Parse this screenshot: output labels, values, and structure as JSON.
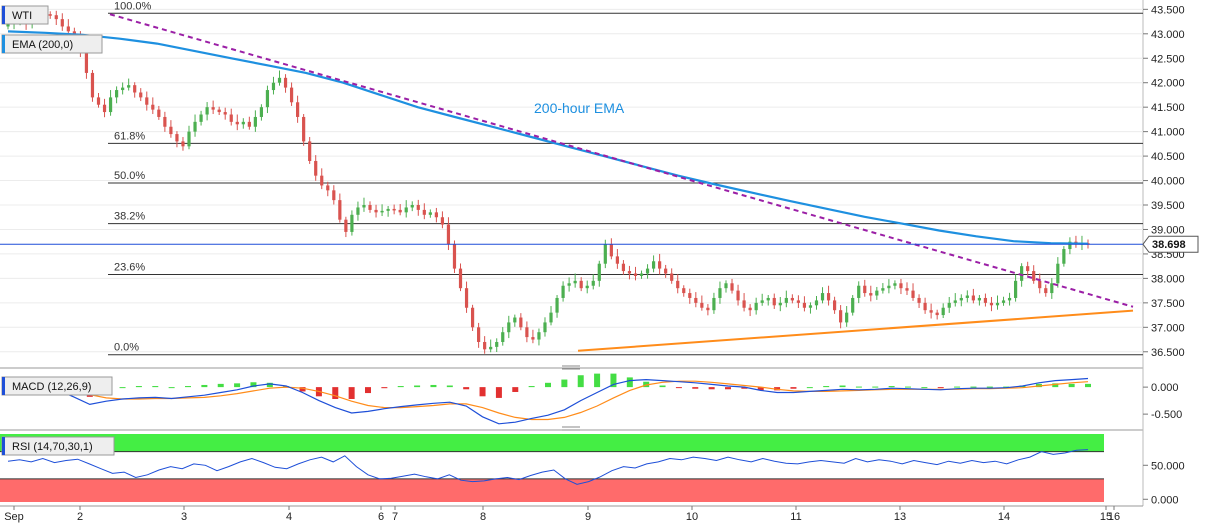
{
  "symbol": "WTI",
  "ema_label": "EMA (200,0)",
  "macd_label": "MACD (12,26,9)",
  "rsi_label": "RSI (14,70,30,1)",
  "price_tag": "38.698",
  "ema_annotation": "200-hour EMA",
  "colors": {
    "bull": "#4caf50",
    "bear": "#d9534f",
    "ema": "#1e90e0",
    "resistance": "#9b1fa6",
    "support": "#ff8c1a",
    "rsi_overbought": "#44ee44",
    "rsi_oversold": "#ff6b6b",
    "macd_line": "#1e4fd8",
    "signal_line": "#ff8c1a"
  },
  "fib_levels": [
    {
      "label": "100.0%",
      "price": 43.42
    },
    {
      "label": "61.8%",
      "price": 40.76
    },
    {
      "label": "50.0%",
      "price": 39.95
    },
    {
      "label": "38.2%",
      "price": 39.12
    },
    {
      "label": "23.6%",
      "price": 38.08
    },
    {
      "label": "0.0%",
      "price": 36.44
    }
  ],
  "x_labels": [
    "Sep",
    "2",
    "3",
    "4",
    "6",
    "7",
    "8",
    "9",
    "10",
    "11",
    "13",
    "14",
    "15",
    "16"
  ],
  "chart_data": [
    {
      "type": "candlestick",
      "title": "WTI",
      "x_axis_ticks": [
        "Sep",
        "2",
        "3",
        "4",
        "6",
        "7",
        "8",
        "9",
        "10",
        "11",
        "13",
        "14",
        "15",
        "16"
      ],
      "y_axis_ticks": [
        "36.500",
        "37.000",
        "37.500",
        "38.000",
        "38.500",
        "39.000",
        "39.500",
        "40.000",
        "40.500",
        "41.000",
        "41.500",
        "42.000",
        "42.500",
        "43.000",
        "43.500"
      ],
      "ylim": [
        36.25,
        43.65
      ],
      "last_price": 38.698,
      "close_series": [
        43.2,
        43.25,
        43.3,
        43.2,
        43.28,
        43.35,
        43.4,
        43.38,
        43.3,
        43.15,
        43.05,
        42.95,
        42.6,
        42.2,
        41.7,
        41.55,
        41.4,
        41.7,
        41.85,
        41.9,
        41.95,
        41.8,
        41.7,
        41.55,
        41.45,
        41.3,
        41.1,
        40.95,
        40.8,
        40.7,
        41.0,
        41.2,
        41.35,
        41.5,
        41.45,
        41.4,
        41.35,
        41.2,
        41.15,
        41.2,
        41.1,
        41.3,
        41.5,
        41.85,
        42.0,
        42.1,
        41.9,
        41.6,
        41.3,
        40.8,
        40.4,
        40.1,
        39.9,
        39.8,
        39.6,
        39.2,
        38.95,
        39.3,
        39.45,
        39.5,
        39.4,
        39.35,
        39.38,
        39.42,
        39.4,
        39.35,
        39.45,
        39.5,
        39.4,
        39.3,
        39.35,
        39.25,
        39.1,
        38.7,
        38.2,
        37.8,
        37.4,
        37.0,
        36.7,
        36.55,
        36.6,
        36.7,
        36.9,
        37.1,
        37.2,
        37.0,
        36.8,
        36.75,
        36.9,
        37.1,
        37.3,
        37.6,
        37.85,
        37.9,
        37.95,
        37.8,
        37.85,
        37.95,
        38.3,
        38.7,
        38.45,
        38.3,
        38.15,
        38.1,
        38.05,
        38.1,
        38.2,
        38.35,
        38.2,
        38.1,
        37.95,
        37.8,
        37.7,
        37.6,
        37.5,
        37.4,
        37.35,
        37.6,
        37.8,
        37.9,
        37.75,
        37.55,
        37.4,
        37.35,
        37.5,
        37.55,
        37.6,
        37.45,
        37.5,
        37.6,
        37.55,
        37.5,
        37.4,
        37.45,
        37.55,
        37.7,
        37.55,
        37.35,
        37.1,
        37.3,
        37.6,
        37.85,
        37.7,
        37.65,
        37.75,
        37.8,
        37.85,
        37.9,
        37.8,
        37.75,
        37.6,
        37.5,
        37.35,
        37.3,
        37.25,
        37.4,
        37.5,
        37.55,
        37.6,
        37.65,
        37.55,
        37.6,
        37.5,
        37.45,
        37.5,
        37.55,
        37.6,
        37.95,
        38.25,
        38.15,
        37.95,
        37.8,
        37.7,
        37.9,
        38.3,
        38.6,
        38.75,
        38.7,
        38.72,
        38.7
      ],
      "ema_200_series": [
        43.05,
        43.02,
        42.98,
        42.9,
        42.8,
        42.65,
        42.5,
        42.35,
        42.2,
        42.0,
        41.75,
        41.5,
        41.3,
        41.1,
        40.9,
        40.7,
        40.5,
        40.3,
        40.1,
        39.92,
        39.75,
        39.58,
        39.42,
        39.26,
        39.12,
        38.98,
        38.86,
        38.76,
        38.72,
        38.71
      ],
      "resistance_line": [
        {
          "x": "Sep 2",
          "y": 43.4
        },
        {
          "x": "Sep 16",
          "y": 37.42
        }
      ],
      "support_line": [
        {
          "x": "Sep 9",
          "y": 36.52
        },
        {
          "x": "Sep 16",
          "y": 37.34
        }
      ]
    },
    {
      "type": "line",
      "title": "MACD (12,26,9)",
      "y_axis_ticks": [
        "0.000",
        "-0.500"
      ],
      "ylim": [
        -0.72,
        0.28
      ],
      "macd_series": [
        0.05,
        0.02,
        0.0,
        -0.05,
        -0.18,
        -0.32,
        -0.26,
        -0.22,
        -0.2,
        -0.19,
        -0.21,
        -0.18,
        -0.15,
        -0.1,
        -0.05,
        0.02,
        0.06,
        0.02,
        -0.1,
        -0.25,
        -0.38,
        -0.48,
        -0.45,
        -0.4,
        -0.36,
        -0.33,
        -0.3,
        -0.28,
        -0.35,
        -0.55,
        -0.68,
        -0.65,
        -0.58,
        -0.52,
        -0.42,
        -0.25,
        -0.1,
        0.05,
        0.12,
        0.14,
        0.12,
        0.1,
        0.08,
        0.05,
        0.02,
        0.0,
        -0.06,
        -0.1,
        -0.1,
        -0.08,
        -0.06,
        -0.04,
        -0.05,
        -0.04,
        -0.02,
        -0.03,
        -0.04,
        -0.05,
        -0.03,
        -0.02,
        -0.02,
        -0.01,
        0.02,
        0.08,
        0.12,
        0.14,
        0.16
      ],
      "signal_series": [
        0.03,
        0.02,
        0.01,
        -0.01,
        -0.06,
        -0.14,
        -0.2,
        -0.22,
        -0.22,
        -0.21,
        -0.21,
        -0.2,
        -0.19,
        -0.16,
        -0.12,
        -0.07,
        -0.02,
        0.0,
        -0.02,
        -0.08,
        -0.16,
        -0.26,
        -0.34,
        -0.38,
        -0.38,
        -0.36,
        -0.34,
        -0.31,
        -0.31,
        -0.38,
        -0.48,
        -0.56,
        -0.6,
        -0.6,
        -0.56,
        -0.47,
        -0.35,
        -0.2,
        -0.06,
        0.04,
        0.09,
        0.11,
        0.11,
        0.09,
        0.06,
        0.03,
        0.0,
        -0.04,
        -0.07,
        -0.08,
        -0.08,
        -0.07,
        -0.06,
        -0.05,
        -0.04,
        -0.04,
        -0.04,
        -0.04,
        -0.04,
        -0.03,
        -0.03,
        -0.02,
        -0.01,
        0.02,
        0.05,
        0.08,
        0.1
      ]
    },
    {
      "type": "line",
      "title": "RSI (14,70,30,1)",
      "y_axis_ticks": [
        "50.000",
        "0.000"
      ],
      "ylim": [
        -4,
        96
      ],
      "overbought": 70,
      "oversold": 30,
      "rsi_series": [
        56,
        58,
        55,
        60,
        54,
        57,
        59,
        52,
        45,
        38,
        40,
        32,
        36,
        43,
        48,
        45,
        52,
        50,
        42,
        48,
        55,
        60,
        54,
        47,
        45,
        52,
        58,
        62,
        55,
        64,
        48,
        36,
        30,
        31,
        34,
        37,
        33,
        30,
        36,
        28,
        26,
        27,
        30,
        32,
        29,
        35,
        40,
        43,
        30,
        22,
        26,
        33,
        42,
        48,
        46,
        52,
        55,
        60,
        58,
        62,
        60,
        57,
        62,
        58,
        55,
        60,
        56,
        53,
        52,
        55,
        57,
        55,
        53,
        60,
        55,
        58,
        56,
        52,
        57,
        54,
        51,
        56,
        53,
        57,
        54,
        56,
        52,
        58,
        62,
        70,
        66,
        68,
        72,
        73
      ]
    }
  ]
}
